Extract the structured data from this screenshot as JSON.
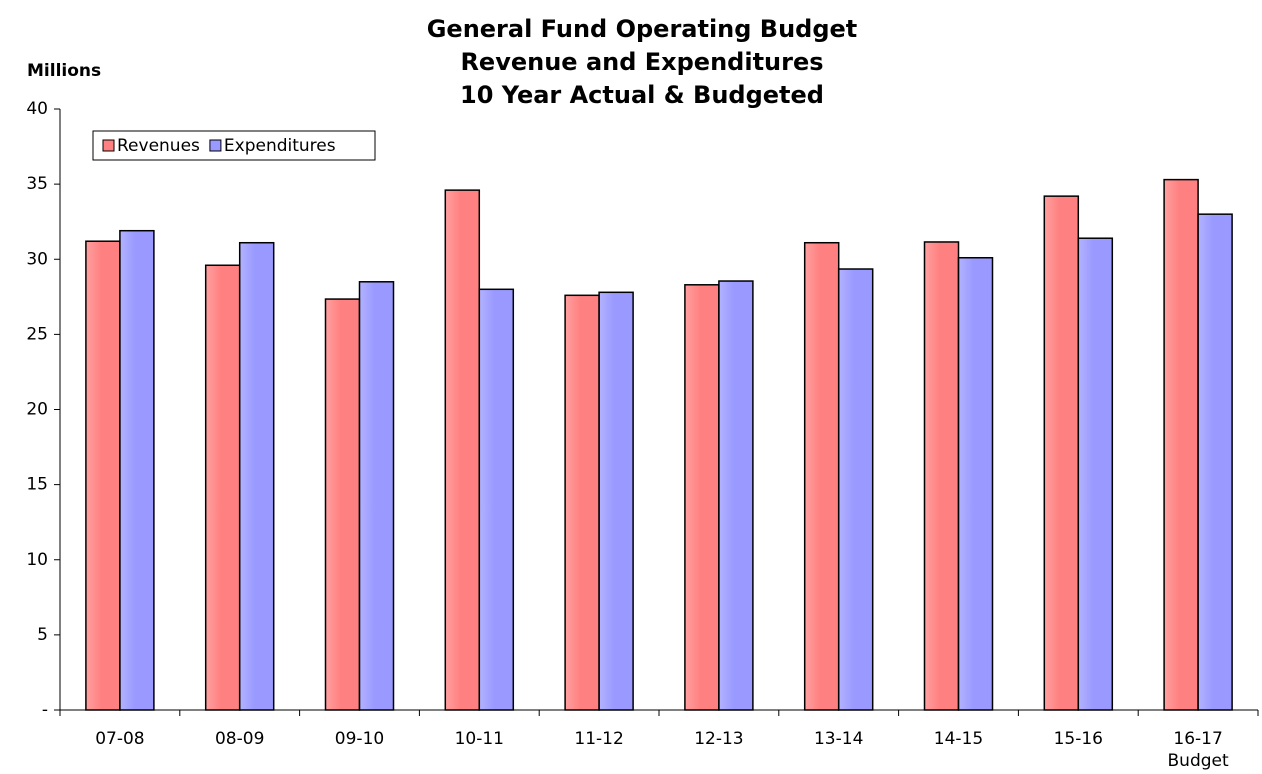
{
  "chart_data": {
    "type": "bar",
    "title": [
      "General Fund Operating Budget",
      "Revenue and Expenditures",
      "10 Year Actual & Budgeted"
    ],
    "y_axis_label": "Millions",
    "categories": [
      "07-08",
      "08-09",
      "09-10",
      "10-11",
      "11-12",
      "12-13",
      "13-14",
      "14-15",
      "15-16",
      "16-17 Budget"
    ],
    "series": [
      {
        "name": "Revenues",
        "color": "#ff8080",
        "values": [
          31.2,
          29.6,
          27.35,
          34.6,
          27.6,
          28.3,
          31.1,
          31.15,
          34.2,
          35.3
        ]
      },
      {
        "name": "Expenditures",
        "color": "#9999ff",
        "values": [
          31.9,
          31.1,
          28.5,
          28.0,
          27.8,
          28.55,
          29.35,
          30.1,
          31.4,
          33.0
        ]
      }
    ],
    "ylim": [
      0,
      40
    ],
    "yticks": [
      {
        "value": 0,
        "label": "-"
      },
      5,
      10,
      15,
      20,
      25,
      30,
      35,
      40
    ],
    "grid": false,
    "legend": "top-left"
  }
}
